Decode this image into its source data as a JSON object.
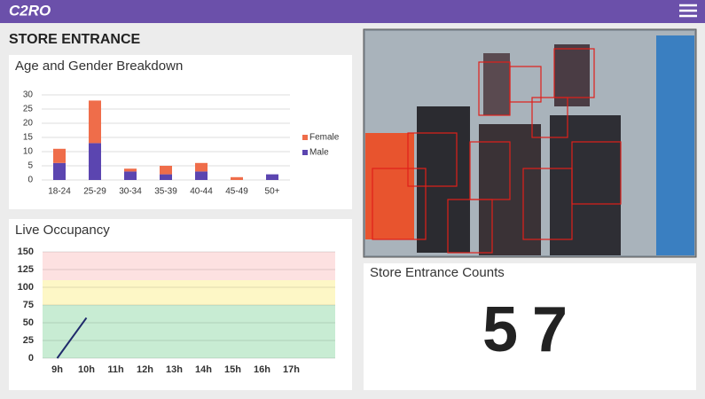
{
  "header": {
    "logo": "C2RO"
  },
  "page_title": "STORE ENTRANCE",
  "age_gender": {
    "type": "bar",
    "stacked": true,
    "title": "Age and Gender Breakdown",
    "categories": [
      "18-24",
      "25-29",
      "30-34",
      "35-39",
      "40-44",
      "45-49",
      "50+"
    ],
    "series": [
      {
        "name": "Female",
        "color": "#ef6d4a",
        "values": [
          5,
          15,
          1,
          3,
          3,
          1,
          0
        ]
      },
      {
        "name": "Male",
        "color": "#5b45b0",
        "values": [
          6,
          13,
          3,
          2,
          3,
          0,
          2
        ]
      }
    ],
    "ylim": [
      0,
      30
    ],
    "yticks": [
      0,
      5,
      10,
      15,
      20,
      25,
      30
    ],
    "grid": true,
    "legend": "right"
  },
  "occupancy": {
    "type": "line",
    "title": "Live Occupancy",
    "categories": [
      "9h",
      "10h",
      "11h",
      "12h",
      "13h",
      "14h",
      "15h",
      "16h",
      "17h"
    ],
    "values": [
      0,
      57,
      null,
      null,
      null,
      null,
      null,
      null,
      null
    ],
    "color": "#1f2a6b",
    "ylim": [
      0,
      150
    ],
    "yticks": [
      0,
      25,
      50,
      75,
      100,
      125,
      150
    ],
    "grid": true,
    "bands": [
      {
        "from": 0,
        "to": 75,
        "color": "#c8ecd3"
      },
      {
        "from": 75,
        "to": 110,
        "color": "#fdf7c6"
      },
      {
        "from": 110,
        "to": 150,
        "color": "#fde1e1"
      }
    ]
  },
  "counts": {
    "title": "Store Entrance Counts",
    "value": 57
  }
}
